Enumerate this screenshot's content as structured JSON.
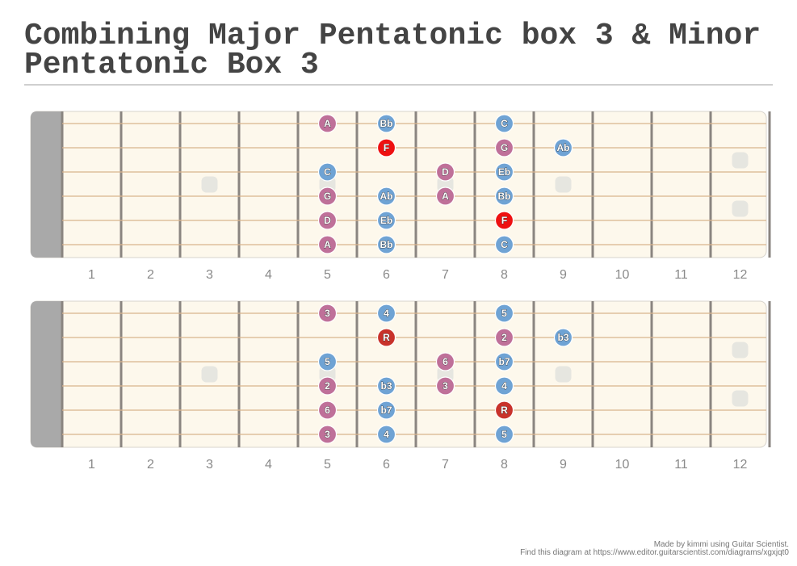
{
  "title": "Combining Major Pentatonic box 3 & Minor Pentatonic Box 3",
  "colors": {
    "major": "#6fa3d4",
    "minor": "#bf7099",
    "root": "#ee1111",
    "root_degree": "#c8322b",
    "fretboard": "#fdf8ec",
    "nut": "#a9a9a9",
    "string": "#d9b48c",
    "fret": "#8a8580",
    "inlay": "#e6e6e0"
  },
  "fret_numbers": [
    "1",
    "2",
    "3",
    "4",
    "5",
    "6",
    "7",
    "8",
    "9",
    "10",
    "11",
    "12"
  ],
  "inlay_frets": [
    3,
    5,
    7,
    9
  ],
  "double_inlay_fret": 12,
  "diagrams": [
    {
      "id": "notes",
      "markers": [
        {
          "string": 1,
          "fret": 5,
          "label": "A",
          "type": "minor"
        },
        {
          "string": 1,
          "fret": 6,
          "label": "Bb",
          "type": "major"
        },
        {
          "string": 1,
          "fret": 8,
          "label": "C",
          "type": "major"
        },
        {
          "string": 2,
          "fret": 6,
          "label": "F",
          "type": "root"
        },
        {
          "string": 2,
          "fret": 8,
          "label": "G",
          "type": "minor"
        },
        {
          "string": 2,
          "fret": 9,
          "label": "Ab",
          "type": "major"
        },
        {
          "string": 3,
          "fret": 5,
          "label": "C",
          "type": "major"
        },
        {
          "string": 3,
          "fret": 7,
          "label": "D",
          "type": "minor"
        },
        {
          "string": 3,
          "fret": 8,
          "label": "Eb",
          "type": "major"
        },
        {
          "string": 4,
          "fret": 5,
          "label": "G",
          "type": "minor"
        },
        {
          "string": 4,
          "fret": 6,
          "label": "Ab",
          "type": "major"
        },
        {
          "string": 4,
          "fret": 7,
          "label": "A",
          "type": "minor"
        },
        {
          "string": 4,
          "fret": 8,
          "label": "Bb",
          "type": "major"
        },
        {
          "string": 5,
          "fret": 5,
          "label": "D",
          "type": "minor"
        },
        {
          "string": 5,
          "fret": 6,
          "label": "Eb",
          "type": "major"
        },
        {
          "string": 5,
          "fret": 8,
          "label": "F",
          "type": "root"
        },
        {
          "string": 6,
          "fret": 5,
          "label": "A",
          "type": "minor"
        },
        {
          "string": 6,
          "fret": 6,
          "label": "Bb",
          "type": "major"
        },
        {
          "string": 6,
          "fret": 8,
          "label": "C",
          "type": "major"
        }
      ]
    },
    {
      "id": "degrees",
      "markers": [
        {
          "string": 1,
          "fret": 5,
          "label": "3",
          "type": "minor"
        },
        {
          "string": 1,
          "fret": 6,
          "label": "4",
          "type": "major"
        },
        {
          "string": 1,
          "fret": 8,
          "label": "5",
          "type": "major"
        },
        {
          "string": 2,
          "fret": 6,
          "label": "R",
          "type": "root_degree"
        },
        {
          "string": 2,
          "fret": 8,
          "label": "2",
          "type": "minor"
        },
        {
          "string": 2,
          "fret": 9,
          "label": "b3",
          "type": "major"
        },
        {
          "string": 3,
          "fret": 5,
          "label": "5",
          "type": "major"
        },
        {
          "string": 3,
          "fret": 7,
          "label": "6",
          "type": "minor"
        },
        {
          "string": 3,
          "fret": 8,
          "label": "b7",
          "type": "major"
        },
        {
          "string": 4,
          "fret": 5,
          "label": "2",
          "type": "minor"
        },
        {
          "string": 4,
          "fret": 6,
          "label": "b3",
          "type": "major"
        },
        {
          "string": 4,
          "fret": 7,
          "label": "3",
          "type": "minor"
        },
        {
          "string": 4,
          "fret": 8,
          "label": "4",
          "type": "major"
        },
        {
          "string": 5,
          "fret": 5,
          "label": "6",
          "type": "minor"
        },
        {
          "string": 5,
          "fret": 6,
          "label": "b7",
          "type": "major"
        },
        {
          "string": 5,
          "fret": 8,
          "label": "R",
          "type": "root_degree"
        },
        {
          "string": 6,
          "fret": 5,
          "label": "3",
          "type": "minor"
        },
        {
          "string": 6,
          "fret": 6,
          "label": "4",
          "type": "major"
        },
        {
          "string": 6,
          "fret": 8,
          "label": "5",
          "type": "major"
        }
      ]
    }
  ],
  "footer": {
    "line1": "Made by kimmi using Guitar Scientist.",
    "line2": "Find this diagram at https://www.editor.guitarscientist.com/diagrams/xgxjqt0"
  }
}
